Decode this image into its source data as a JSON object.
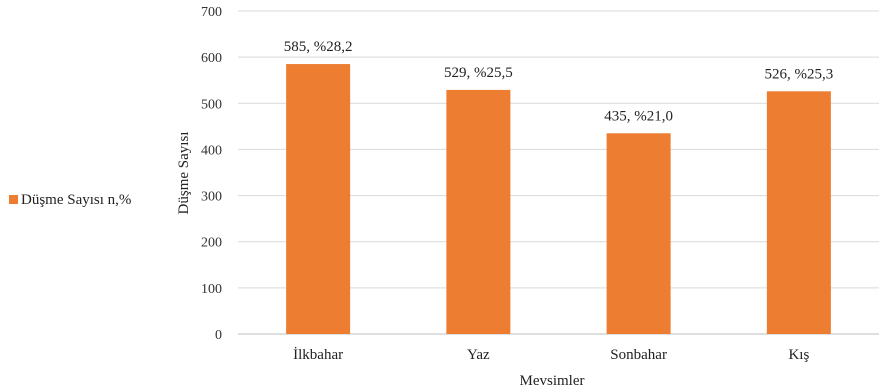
{
  "chart_data": {
    "type": "bar",
    "categories": [
      "İlkbahar",
      "Yaz",
      "Sonbahar",
      "Kış"
    ],
    "series": [
      {
        "name": "Düşme Sayısı n,%",
        "values": [
          585,
          529,
          435,
          526
        ],
        "labels": [
          "585, %28,2",
          "529, %25,5",
          "435, %21,0",
          "526, %25,3"
        ],
        "color": "#ED7D31"
      }
    ],
    "xlabel": "Mevsimler",
    "ylabel": "Düşme Sayısı",
    "ylim": [
      0,
      700
    ],
    "yticks": [
      0,
      100,
      200,
      300,
      400,
      500,
      600,
      700
    ],
    "grid": true,
    "legend": "left"
  }
}
